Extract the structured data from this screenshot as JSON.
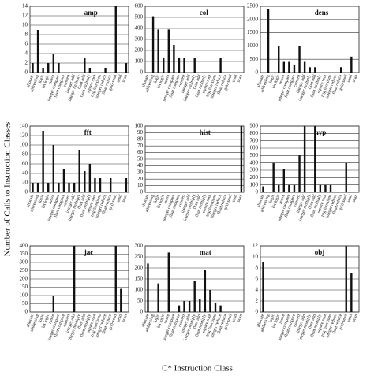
{
  "y_axis_label": "Number of Calls to Instruction Classes",
  "x_axis_label": "C* Instruction Class",
  "chart_data": [
    {
      "type": "bar",
      "title": "amp",
      "color": "#111",
      "grid": true,
      "categories": [
        "allocate",
        "addressing",
        "logic",
        "bit logic",
        "move",
        "integer compare",
        "float compare",
        "convert",
        "integer add",
        "integer multiply",
        "float add",
        "float multiply",
        "square root",
        "trig functions",
        "integer reduce",
        "float reduce",
        "grid-send",
        "send",
        "scan"
      ],
      "values": [
        2,
        9,
        1,
        2,
        4,
        2,
        0,
        0,
        0,
        0,
        3,
        1,
        0,
        0,
        1,
        0,
        14,
        0,
        2
      ],
      "ylim": [
        0,
        14
      ],
      "yticks": [
        0,
        2,
        4,
        6,
        8,
        10,
        12,
        14
      ]
    },
    {
      "type": "bar",
      "title": "col",
      "color": "#111",
      "grid": true,
      "categories": [
        "allocate",
        "addressing",
        "logic",
        "bit logic",
        "move",
        "integer compare",
        "float compare",
        "convert",
        "integer add",
        "integer multiply",
        "float add",
        "float multiply",
        "square root",
        "trig functions",
        "integer reduce",
        "float reduce",
        "grid-send",
        "send",
        "scan"
      ],
      "values": [
        0,
        510,
        390,
        130,
        390,
        250,
        130,
        130,
        0,
        130,
        0,
        0,
        0,
        0,
        130,
        0,
        0,
        0,
        0
      ],
      "ylim": [
        0,
        600
      ],
      "yticks": [
        0,
        100,
        200,
        300,
        400,
        500,
        600
      ]
    },
    {
      "type": "bar",
      "title": "dens",
      "color": "#111",
      "grid": true,
      "categories": [
        "allocate",
        "addressing",
        "logic",
        "bit logic",
        "move",
        "integer compare",
        "float compare",
        "convert",
        "integer add",
        "integer multiply",
        "float add",
        "float multiply",
        "square root",
        "trig functions",
        "integer reduce",
        "float reduce",
        "grid-send",
        "send",
        "scan"
      ],
      "values": [
        0,
        2400,
        0,
        1000,
        400,
        400,
        300,
        1000,
        400,
        200,
        200,
        0,
        0,
        0,
        0,
        200,
        0,
        600,
        0
      ],
      "ylim": [
        0,
        2500
      ],
      "yticks": [
        0,
        500,
        1000,
        1500,
        2000,
        2500
      ]
    },
    {
      "type": "bar",
      "title": "fft",
      "color": "#111",
      "grid": true,
      "categories": [
        "allocate",
        "addressing",
        "logic",
        "bit logic",
        "move",
        "integer compare",
        "float compare",
        "convert",
        "integer add",
        "integer multiply",
        "float add",
        "float multiply",
        "square root",
        "trig functions",
        "integer reduce",
        "float reduce",
        "grid-send",
        "send",
        "scan"
      ],
      "values": [
        20,
        20,
        130,
        20,
        100,
        20,
        50,
        20,
        20,
        90,
        45,
        60,
        30,
        30,
        0,
        30,
        0,
        0,
        30
      ],
      "ylim": [
        0,
        140
      ],
      "yticks": [
        0,
        20,
        40,
        60,
        80,
        100,
        120,
        140
      ]
    },
    {
      "type": "bar",
      "title": "hist",
      "color": "#111",
      "grid": true,
      "categories": [
        "allocate",
        "addressing",
        "logic",
        "bit logic",
        "move",
        "integer compare",
        "float compare",
        "convert",
        "integer add",
        "integer multiply",
        "float add",
        "float multiply",
        "square root",
        "trig functions",
        "integer reduce",
        "float reduce",
        "grid-send",
        "send",
        "scan"
      ],
      "values": [
        0,
        0,
        0,
        0,
        0,
        0,
        0,
        0,
        0,
        0,
        0,
        0,
        0,
        0,
        0,
        0,
        0,
        0,
        100
      ],
      "ylim": [
        0,
        100
      ],
      "yticks": [
        0,
        10,
        20,
        30,
        40,
        50,
        60,
        70,
        80,
        90,
        100
      ]
    },
    {
      "type": "bar",
      "title": "hyp",
      "color": "#111",
      "grid": true,
      "categories": [
        "allocate",
        "addressing",
        "logic",
        "bit logic",
        "move",
        "integer compare",
        "float compare",
        "convert",
        "integer add",
        "integer multiply",
        "float add",
        "float multiply",
        "square root",
        "trig functions",
        "integer reduce",
        "float reduce",
        "grid-send",
        "send",
        "scan"
      ],
      "values": [
        80,
        0,
        400,
        100,
        320,
        100,
        100,
        500,
        900,
        0,
        900,
        100,
        100,
        100,
        0,
        0,
        400,
        0,
        0
      ],
      "ylim": [
        0,
        900
      ],
      "yticks": [
        0,
        100,
        200,
        300,
        400,
        500,
        600,
        700,
        800,
        900
      ]
    },
    {
      "type": "bar",
      "title": "jac",
      "color": "#111",
      "grid": true,
      "categories": [
        "allocate",
        "addressing",
        "logic",
        "bit logic",
        "move",
        "integer compare",
        "float compare",
        "convert",
        "integer add",
        "integer multiply",
        "float add",
        "float multiply",
        "square root",
        "trig functions",
        "integer reduce",
        "float reduce",
        "grid-send",
        "send",
        "scan"
      ],
      "values": [
        0,
        0,
        0,
        0,
        100,
        0,
        0,
        0,
        400,
        0,
        0,
        0,
        0,
        0,
        0,
        0,
        400,
        140,
        0
      ],
      "ylim": [
        0,
        400
      ],
      "yticks": [
        0,
        50,
        100,
        150,
        200,
        250,
        300,
        350,
        400
      ]
    },
    {
      "type": "bar",
      "title": "mat",
      "color": "#111",
      "grid": true,
      "categories": [
        "allocate",
        "addressing",
        "logic",
        "bit logic",
        "move",
        "integer compare",
        "float compare",
        "convert",
        "integer add",
        "integer multiply",
        "float add",
        "float multiply",
        "square root",
        "trig functions",
        "integer reduce",
        "float reduce",
        "grid-send",
        "send",
        "scan"
      ],
      "values": [
        220,
        0,
        130,
        0,
        270,
        0,
        30,
        50,
        50,
        140,
        60,
        190,
        100,
        40,
        30,
        0,
        0,
        0,
        0
      ],
      "ylim": [
        0,
        300
      ],
      "yticks": [
        0,
        50,
        100,
        150,
        200,
        250,
        300
      ]
    },
    {
      "type": "bar",
      "title": "obj",
      "color": "#111",
      "grid": true,
      "categories": [
        "allocate",
        "addressing",
        "logic",
        "bit logic",
        "move",
        "integer compare",
        "float compare",
        "convert",
        "integer add",
        "integer multiply",
        "float add",
        "float multiply",
        "square root",
        "trig functions",
        "integer reduce",
        "float reduce",
        "grid-send",
        "send",
        "scan"
      ],
      "values": [
        9,
        0,
        0,
        0,
        0,
        0,
        0,
        0,
        0,
        0,
        0,
        0,
        0,
        0,
        0,
        0,
        12,
        7,
        0
      ],
      "ylim": [
        0,
        12
      ],
      "yticks": [
        0,
        2,
        4,
        6,
        8,
        10,
        12
      ]
    }
  ]
}
